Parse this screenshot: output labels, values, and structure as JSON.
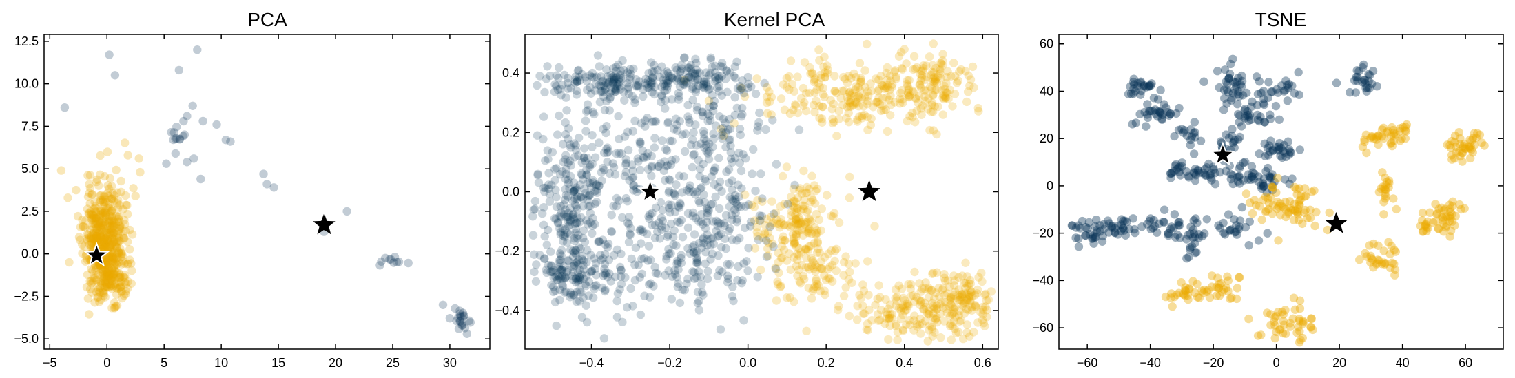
{
  "colors": {
    "blue": "#0b3558",
    "yellow": "#eaaa00",
    "star": "#000000",
    "axis": "#000000"
  },
  "chart_data": [
    {
      "type": "scatter",
      "title": "PCA",
      "xlim": [
        -5.5,
        33.5
      ],
      "ylim": [
        -5.6,
        12.9
      ],
      "xticks": [
        -5,
        0,
        5,
        10,
        15,
        20,
        25,
        30
      ],
      "xtick_labels": [
        "−5",
        "0",
        "5",
        "10",
        "15",
        "20",
        "25",
        "30"
      ],
      "yticks": [
        -5.0,
        -2.5,
        0.0,
        2.5,
        5.0,
        7.5,
        10.0,
        12.5
      ],
      "ytick_labels": [
        "−5.0",
        "−2.5",
        "0.0",
        "2.5",
        "5.0",
        "7.5",
        "10.0",
        "12.5"
      ],
      "series": [
        {
          "color": "yellow",
          "alpha": 0.28,
          "clusters": [
            {
              "center": [
                -0.3,
                1.0
              ],
              "spread": [
                0.9,
                1.6
              ],
              "n": 420,
              "seed": 11
            },
            {
              "center": [
                0.3,
                -1.2
              ],
              "spread": [
                0.8,
                0.8
              ],
              "n": 120,
              "seed": 12
            }
          ],
          "points": [
            [
              -4.0,
              4.9
            ],
            [
              2.8,
              5.6
            ],
            [
              2.9,
              4.8
            ],
            [
              -3.3,
              -0.5
            ],
            [
              2.5,
              3.4
            ]
          ]
        },
        {
          "color": "blue",
          "alpha": 0.25,
          "clusters": [
            {
              "center": [
                6.3,
                7.0
              ],
              "spread": [
                0.4,
                0.25
              ],
              "n": 10,
              "seed": 21
            },
            {
              "center": [
                24.8,
                -0.4
              ],
              "spread": [
                0.5,
                0.15
              ],
              "n": 10,
              "seed": 22
            },
            {
              "center": [
                30.7,
                -3.8
              ],
              "spread": [
                0.5,
                0.4
              ],
              "n": 20,
              "seed": 23
            }
          ],
          "points": [
            [
              -3.7,
              8.6
            ],
            [
              0.2,
              11.7
            ],
            [
              0.7,
              10.5
            ],
            [
              6.3,
              10.8
            ],
            [
              7.9,
              12.0
            ],
            [
              7.5,
              8.7
            ],
            [
              8.4,
              7.8
            ],
            [
              9.6,
              7.6
            ],
            [
              10.4,
              6.7
            ],
            [
              10.8,
              6.6
            ],
            [
              6.7,
              7.8
            ],
            [
              7.0,
              8.1
            ],
            [
              5.2,
              5.3
            ],
            [
              6.0,
              5.9
            ],
            [
              7.0,
              5.4
            ],
            [
              7.6,
              5.6
            ],
            [
              8.2,
              4.4
            ],
            [
              13.7,
              4.7
            ],
            [
              14.0,
              4.1
            ],
            [
              14.6,
              3.9
            ],
            [
              21.0,
              2.5
            ],
            [
              19.0,
              1.3
            ],
            [
              29.4,
              -3.0
            ],
            [
              31.5,
              -4.7
            ]
          ]
        }
      ],
      "stars": [
        [
          -0.9,
          -0.1
        ],
        [
          19.0,
          1.7
        ]
      ],
      "stars_outlined": [
        true,
        false
      ]
    },
    {
      "type": "scatter",
      "title": "Kernel PCA",
      "xlim": [
        -0.57,
        0.64
      ],
      "ylim": [
        -0.53,
        0.53
      ],
      "xticks": [
        -0.4,
        -0.2,
        0.0,
        0.2,
        0.4,
        0.6
      ],
      "xtick_labels": [
        "−0.4",
        "−0.2",
        "0.0",
        "0.2",
        "0.4",
        "0.6"
      ],
      "yticks": [
        -0.4,
        -0.2,
        0.0,
        0.2,
        0.4
      ],
      "ytick_labels": [
        "−0.4",
        "−0.2",
        "0.0",
        "0.2",
        "0.4"
      ],
      "series": [
        {
          "color": "yellow",
          "alpha": 0.25,
          "clusters": [
            {
              "center": [
                0.3,
                0.33
              ],
              "spread": [
                0.14,
                0.06
              ],
              "n": 260,
              "seed": 31
            },
            {
              "center": [
                0.47,
                0.38
              ],
              "spread": [
                0.06,
                0.05
              ],
              "n": 80,
              "seed": 32
            },
            {
              "center": [
                0.12,
                -0.1
              ],
              "spread": [
                0.05,
                0.07
              ],
              "n": 160,
              "seed": 33
            },
            {
              "center": [
                0.17,
                -0.26
              ],
              "spread": [
                0.06,
                0.06
              ],
              "n": 80,
              "seed": 34
            },
            {
              "center": [
                0.43,
                -0.4
              ],
              "spread": [
                0.1,
                0.05
              ],
              "n": 180,
              "seed": 35
            },
            {
              "center": [
                0.55,
                -0.36
              ],
              "spread": [
                0.04,
                0.05
              ],
              "n": 90,
              "seed": 36
            }
          ],
          "points": [
            [
              0.26,
              0.05
            ],
            [
              0.4,
              0.48
            ],
            [
              0.06,
              0.26
            ]
          ]
        },
        {
          "color": "blue",
          "alpha": 0.22,
          "clusters": [
            {
              "center": [
                -0.32,
                0.37
              ],
              "spread": [
                0.1,
                0.035
              ],
              "n": 180,
              "seed": 41
            },
            {
              "center": [
                -0.12,
                0.39
              ],
              "spread": [
                0.05,
                0.03
              ],
              "n": 80,
              "seed": 42
            },
            {
              "center": [
                -0.46,
                -0.05
              ],
              "spread": [
                0.04,
                0.14
              ],
              "n": 170,
              "seed": 43
            },
            {
              "center": [
                -0.45,
                -0.28
              ],
              "spread": [
                0.05,
                0.05
              ],
              "n": 120,
              "seed": 44
            },
            {
              "center": [
                -0.28,
                0.07
              ],
              "spread": [
                0.12,
                0.12
              ],
              "n": 230,
              "seed": 45
            },
            {
              "center": [
                -0.18,
                -0.22
              ],
              "spread": [
                0.12,
                0.1
              ],
              "n": 200,
              "seed": 46
            },
            {
              "center": [
                -0.06,
                0.22
              ],
              "spread": [
                0.06,
                0.08
              ],
              "n": 80,
              "seed": 47
            },
            {
              "center": [
                -0.05,
                -0.07
              ],
              "spread": [
                0.06,
                0.1
              ],
              "n": 80,
              "seed": 48
            }
          ],
          "points": [
            [
              -0.14,
              0.0
            ],
            [
              -0.13,
              0.0
            ],
            [
              -0.15,
              0.0
            ],
            [
              0.0,
              0.35
            ],
            [
              0.02,
              0.33
            ]
          ]
        }
      ],
      "stars": [
        [
          -0.25,
          0.0
        ],
        [
          0.31,
          0.0
        ]
      ],
      "stars_outlined": [
        true,
        false
      ]
    },
    {
      "type": "scatter",
      "title": "TSNE",
      "xlim": [
        -69.0,
        72.0
      ],
      "ylim": [
        -69.0,
        64.0
      ],
      "xticks": [
        -60,
        -40,
        -20,
        0,
        20,
        40,
        60
      ],
      "xtick_labels": [
        "−60",
        "−40",
        "−20",
        "0",
        "20",
        "40",
        "60"
      ],
      "yticks": [
        -60,
        -40,
        -20,
        0,
        20,
        40,
        60
      ],
      "ytick_labels": [
        "−60",
        "−40",
        "−20",
        "0",
        "20",
        "40",
        "60"
      ],
      "series": [
        {
          "color": "blue",
          "alpha": 0.4,
          "clusters": [
            {
              "center": [
                -44,
                41
              ],
              "spread": [
                2.5,
                2.0
              ],
              "n": 25,
              "seed": 51
            },
            {
              "center": [
                -37,
                31
              ],
              "spread": [
                3.5,
                3.0
              ],
              "n": 30,
              "seed": 52
            },
            {
              "center": [
                -28,
                20
              ],
              "spread": [
                2.0,
                3.0
              ],
              "n": 15,
              "seed": 53
            },
            {
              "center": [
                -14,
                43
              ],
              "spread": [
                3.0,
                4.0
              ],
              "n": 30,
              "seed": 54
            },
            {
              "center": [
                -10,
                30
              ],
              "spread": [
                4.5,
                3.5
              ],
              "n": 35,
              "seed": 55
            },
            {
              "center": [
                -1,
                40
              ],
              "spread": [
                4.5,
                3.0
              ],
              "n": 25,
              "seed": 56
            },
            {
              "center": [
                -15,
                18
              ],
              "spread": [
                2.0,
                2.0
              ],
              "n": 15,
              "seed": 57
            },
            {
              "center": [
                -29,
                6
              ],
              "spread": [
                3.0,
                2.0
              ],
              "n": 25,
              "seed": 58
            },
            {
              "center": [
                -20,
                6
              ],
              "spread": [
                2.0,
                2.0
              ],
              "n": 15,
              "seed": 59
            },
            {
              "center": [
                -12,
                6
              ],
              "spread": [
                3.0,
                3.0
              ],
              "n": 20,
              "seed": 60
            },
            {
              "center": [
                0,
                15
              ],
              "spread": [
                4.0,
                3.0
              ],
              "n": 30,
              "seed": 61
            },
            {
              "center": [
                -4,
                2
              ],
              "spread": [
                4.0,
                3.0
              ],
              "n": 25,
              "seed": 62
            },
            {
              "center": [
                27,
                44
              ],
              "spread": [
                2.5,
                3.0
              ],
              "n": 25,
              "seed": 63
            },
            {
              "center": [
                -59,
                -20
              ],
              "spread": [
                3.0,
                3.0
              ],
              "n": 30,
              "seed": 64
            },
            {
              "center": [
                -50,
                -18
              ],
              "spread": [
                3.0,
                2.0
              ],
              "n": 25,
              "seed": 65
            },
            {
              "center": [
                -35,
                -17
              ],
              "spread": [
                4.0,
                2.0
              ],
              "n": 30,
              "seed": 66
            },
            {
              "center": [
                -27,
                -22
              ],
              "spread": [
                2.0,
                4.0
              ],
              "n": 20,
              "seed": 67
            },
            {
              "center": [
                -14,
                -18
              ],
              "spread": [
                4.0,
                3.0
              ],
              "n": 25,
              "seed": 68
            }
          ],
          "points": [
            [
              -23,
              44
            ],
            [
              -30,
              24
            ],
            [
              7,
              48
            ],
            [
              5,
              3
            ],
            [
              -7,
              5
            ]
          ]
        },
        {
          "color": "yellow",
          "alpha": 0.4,
          "clusters": [
            {
              "center": [
                3,
                -8
              ],
              "spread": [
                6.0,
                5.0
              ],
              "n": 70,
              "seed": 71
            },
            {
              "center": [
                33,
                20
              ],
              "spread": [
                4.0,
                3.0
              ],
              "n": 30,
              "seed": 72
            },
            {
              "center": [
                40,
                23
              ],
              "spread": [
                2.0,
                1.5
              ],
              "n": 10,
              "seed": 73
            },
            {
              "center": [
                35,
                -3
              ],
              "spread": [
                1.5,
                4.0
              ],
              "n": 20,
              "seed": 74
            },
            {
              "center": [
                33,
                -30
              ],
              "spread": [
                3.0,
                4.0
              ],
              "n": 30,
              "seed": 75
            },
            {
              "center": [
                59,
                17
              ],
              "spread": [
                3.0,
                3.0
              ],
              "n": 40,
              "seed": 76
            },
            {
              "center": [
                50,
                -15
              ],
              "spread": [
                3.0,
                3.0
              ],
              "n": 30,
              "seed": 77
            },
            {
              "center": [
                56,
                -12
              ],
              "spread": [
                3.0,
                3.0
              ],
              "n": 20,
              "seed": 78
            },
            {
              "center": [
                -29,
                -46
              ],
              "spread": [
                3.0,
                2.0
              ],
              "n": 25,
              "seed": 79
            },
            {
              "center": [
                -17,
                -43
              ],
              "spread": [
                3.0,
                3.0
              ],
              "n": 25,
              "seed": 80
            },
            {
              "center": [
                3,
                -57
              ],
              "spread": [
                4.0,
                4.0
              ],
              "n": 45,
              "seed": 81
            }
          ],
          "points": [
            [
              -33,
              -51
            ],
            [
              66,
              17
            ],
            [
              12,
              -2
            ]
          ]
        }
      ],
      "stars": [
        [
          -17,
          13
        ],
        [
          19,
          -16
        ]
      ],
      "stars_outlined": [
        true,
        false
      ]
    }
  ]
}
